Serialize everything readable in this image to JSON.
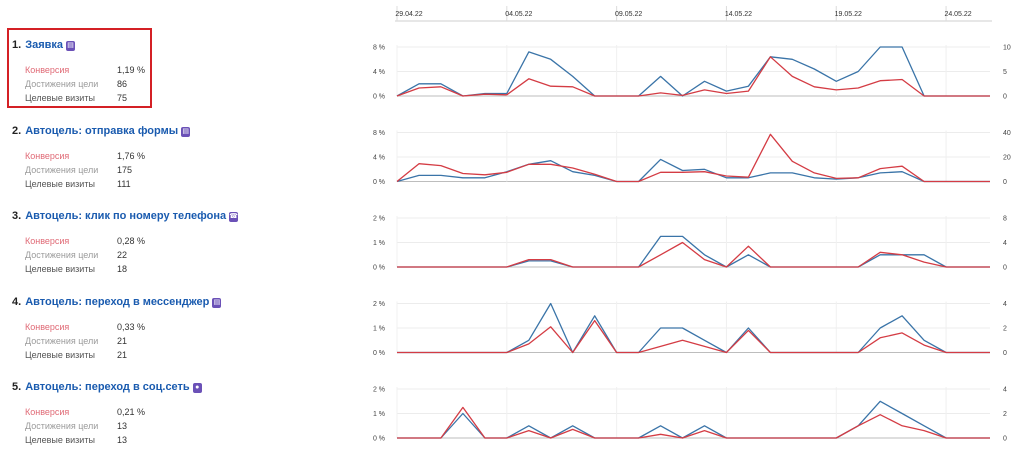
{
  "dates": [
    {
      "label": "29.04.22",
      "index": 0,
      "highlight": false
    },
    {
      "label": "04.05.22",
      "index": 5,
      "highlight": false
    },
    {
      "label": "09.05.22",
      "index": 10,
      "highlight": false
    },
    {
      "label": "14.05.22",
      "index": 15,
      "highlight": true
    },
    {
      "label": "19.05.22",
      "index": 20,
      "highlight": false
    },
    {
      "label": "24.05.22",
      "index": 25,
      "highlight": false
    }
  ],
  "colors": {
    "conversion": "#d43c44",
    "visits": "#3a74a8",
    "title": "#1a5baf",
    "selected": "#d42025",
    "date_highlight": "#d43c44"
  },
  "goals": [
    {
      "number": "1.",
      "name": "Заявка",
      "icon": "form-icon",
      "selected": true,
      "stats": [
        {
          "label": "Конверсия",
          "value": "1,19 %"
        },
        {
          "label": "Достижения цели",
          "value": "86"
        },
        {
          "label": "Целевые визиты",
          "value": "75"
        }
      ],
      "chart_data": {
        "type": "line",
        "left_ticks": [
          "0 %",
          "4 %",
          "8 %"
        ],
        "left_max": 8,
        "right_ticks": [
          "0",
          "5",
          "10"
        ],
        "right_max": 10,
        "series": [
          {
            "axis": "right",
            "values": [
              0,
              2.5,
              2.5,
              0,
              0.5,
              0.5,
              9,
              7.5,
              4,
              0,
              0,
              0,
              4,
              0,
              3,
              1,
              2,
              8,
              7.5,
              5.5,
              3,
              5,
              10,
              10,
              0,
              0,
              0,
              0
            ]
          },
          {
            "axis": "left",
            "values": [
              0,
              1.3,
              1.5,
              0,
              0.3,
              0.2,
              2.8,
              1.6,
              1.5,
              0,
              0,
              0,
              0.5,
              0.1,
              1,
              0.4,
              0.8,
              6.4,
              3.2,
              1.5,
              1,
              1.3,
              2.5,
              2.7,
              0,
              0,
              0,
              0
            ]
          }
        ]
      }
    },
    {
      "number": "2.",
      "name": "Автоцель: отправка формы",
      "icon": "form-icon",
      "selected": false,
      "stats": [
        {
          "label": "Конверсия",
          "value": "1,76 %"
        },
        {
          "label": "Достижения цели",
          "value": "175"
        },
        {
          "label": "Целевые визиты",
          "value": "111"
        }
      ],
      "chart_data": {
        "type": "line",
        "left_ticks": [
          "0 %",
          "4 %",
          "8 %"
        ],
        "left_max": 8,
        "right_ticks": [
          "0",
          "20",
          "40"
        ],
        "right_max": 40,
        "series": [
          {
            "axis": "right",
            "values": [
              0,
              5,
              5,
              3,
              3,
              8,
              14,
              17,
              8,
              5,
              0,
              0,
              18,
              9,
              10,
              3,
              3,
              7,
              7,
              3,
              2,
              3,
              7,
              8,
              0,
              0,
              0,
              0
            ]
          },
          {
            "axis": "left",
            "values": [
              0,
              2.9,
              2.6,
              1.3,
              1.1,
              1.5,
              2.8,
              2.8,
              2.2,
              1.2,
              0,
              0,
              1.5,
              1.5,
              1.6,
              0.9,
              0.7,
              7.7,
              3.3,
              1.4,
              0.5,
              0.6,
              2.1,
              2.5,
              0,
              0,
              0,
              0
            ]
          }
        ]
      }
    },
    {
      "number": "3.",
      "name": "Автоцель: клик по номеру телефона",
      "icon": "phone-icon",
      "selected": false,
      "stats": [
        {
          "label": "Конверсия",
          "value": "0,28 %"
        },
        {
          "label": "Достижения цели",
          "value": "22"
        },
        {
          "label": "Целевые визиты",
          "value": "18"
        }
      ],
      "chart_data": {
        "type": "line",
        "left_ticks": [
          "0 %",
          "1 %",
          "2 %"
        ],
        "left_max": 2,
        "right_ticks": [
          "0",
          "4",
          "8"
        ],
        "right_max": 8,
        "series": [
          {
            "axis": "right",
            "values": [
              0,
              0,
              0,
              0,
              0,
              0,
              1,
              1,
              0,
              0,
              0,
              0,
              5,
              5,
              2,
              0,
              2,
              0,
              0,
              0,
              0,
              0,
              2,
              2,
              2,
              0,
              0,
              0
            ]
          },
          {
            "axis": "left",
            "values": [
              0,
              0,
              0,
              0,
              0,
              0,
              0.3,
              0.3,
              0,
              0,
              0,
              0,
              0.5,
              1,
              0.3,
              0,
              0.85,
              0,
              0,
              0,
              0,
              0,
              0.6,
              0.5,
              0.2,
              0,
              0,
              0
            ]
          }
        ]
      }
    },
    {
      "number": "4.",
      "name": "Автоцель: переход в мессенджер",
      "icon": "messenger-icon",
      "selected": false,
      "stats": [
        {
          "label": "Конверсия",
          "value": "0,33 %"
        },
        {
          "label": "Достижения цели",
          "value": "21"
        },
        {
          "label": "Целевые визиты",
          "value": "21"
        }
      ],
      "chart_data": {
        "type": "line",
        "left_ticks": [
          "0 %",
          "1 %",
          "2 %"
        ],
        "left_max": 2,
        "right_ticks": [
          "0",
          "2",
          "4"
        ],
        "right_max": 4,
        "series": [
          {
            "axis": "right",
            "values": [
              0,
              0,
              0,
              0,
              0,
              0,
              1,
              4,
              0,
              3,
              0,
              0,
              2,
              2,
              1,
              0,
              2,
              0,
              0,
              0,
              0,
              0,
              2,
              3,
              1,
              0,
              0,
              0
            ]
          },
          {
            "axis": "left",
            "values": [
              0,
              0,
              0,
              0,
              0,
              0,
              0.35,
              1.05,
              0,
              1.3,
              0,
              0,
              0.25,
              0.5,
              0.25,
              0,
              0.9,
              0,
              0,
              0,
              0,
              0,
              0.6,
              0.8,
              0.3,
              0,
              0,
              0
            ]
          }
        ]
      }
    },
    {
      "number": "5.",
      "name": "Автоцель: переход в соц.сеть",
      "icon": "social-icon",
      "selected": false,
      "stats": [
        {
          "label": "Конверсия",
          "value": "0,21 %"
        },
        {
          "label": "Достижения цели",
          "value": "13"
        },
        {
          "label": "Целевые визиты",
          "value": "13"
        }
      ],
      "chart_data": {
        "type": "line",
        "left_ticks": [
          "0 %",
          "1 %",
          "2 %"
        ],
        "left_max": 2,
        "right_ticks": [
          "0",
          "2",
          "4"
        ],
        "right_max": 4,
        "series": [
          {
            "axis": "right",
            "values": [
              0,
              0,
              0,
              2,
              0,
              0,
              1,
              0,
              1,
              0,
              0,
              0,
              1,
              0,
              1,
              0,
              0,
              0,
              0,
              0,
              0,
              1,
              3,
              2,
              1,
              0,
              0,
              0
            ]
          },
          {
            "axis": "left",
            "values": [
              0,
              0,
              0,
              1.25,
              0,
              0,
              0.3,
              0,
              0.35,
              0,
              0,
              0,
              0.15,
              0,
              0.3,
              0,
              0,
              0,
              0,
              0,
              0,
              0.5,
              0.95,
              0.5,
              0.3,
              0,
              0,
              0
            ]
          }
        ]
      }
    }
  ]
}
